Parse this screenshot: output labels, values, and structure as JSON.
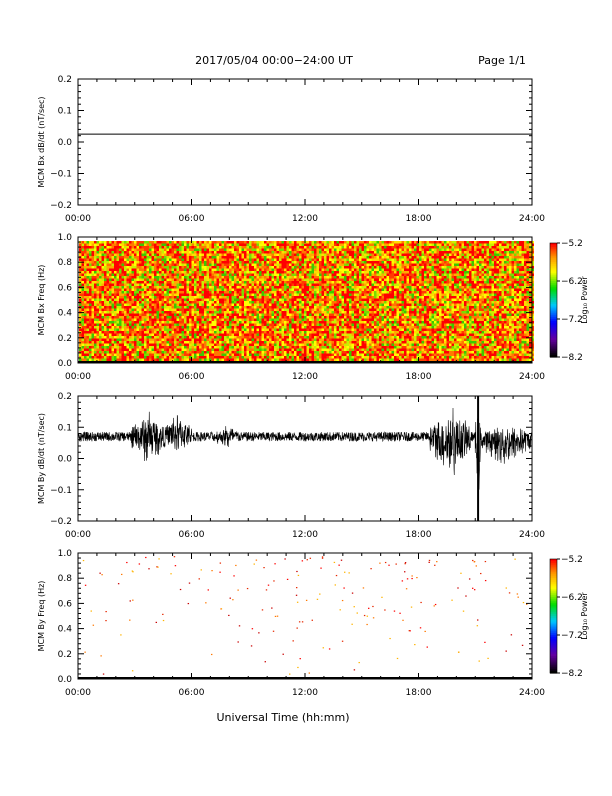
{
  "header": {
    "title": "2017/05/04  00:00−24:00 UT",
    "page": "Page 1/1"
  },
  "xlabel": "Universal Time (hh:mm)",
  "x_ticks": [
    "00:00",
    "06:00",
    "12:00",
    "18:00",
    "24:00"
  ],
  "chart_data": [
    {
      "type": "line",
      "ylabel": "MCM Bx dB/dt (nT/sec)",
      "xlim": [
        0,
        24
      ],
      "ylim": [
        -0.2,
        0.2
      ],
      "y_ticks": [
        "0.2",
        "0.1",
        "0.0",
        "−0.1",
        "−0.2"
      ],
      "series": [
        {
          "x": [
            0,
            24
          ],
          "y": [
            0.025,
            0.025
          ]
        }
      ]
    },
    {
      "type": "heatmap",
      "ylabel": "MCM Bx Freq (Hz)",
      "xlim": [
        0,
        24
      ],
      "ylim": [
        0,
        1.0
      ],
      "y_ticks": [
        "1.0",
        "0.8",
        "0.6",
        "0.4",
        "0.2",
        "0.0"
      ],
      "colorbar": {
        "label": "Log₁₀ Power",
        "ticks": [
          "−5.2",
          "−6.2",
          "−7.2",
          "−8.2"
        ],
        "range": [
          -8.2,
          -5.2
        ]
      },
      "values": "dense noise, mostly -5.2 to -6.2 (red/orange/yellow with green speckle)"
    },
    {
      "type": "line",
      "ylabel": "MCM By dB/dt (nT/sec)",
      "xlim": [
        0,
        24
      ],
      "ylim": [
        -0.2,
        0.2
      ],
      "y_ticks": [
        "0.2",
        "0.1",
        "0.0",
        "−0.1",
        "−0.2"
      ],
      "series": [
        {
          "baseline": 0.07,
          "noise_amplitude": 0.015,
          "bursts": [
            {
              "x": [
                2.8,
                4.6
              ],
              "range": [
                -0.04,
                0.17
              ]
            },
            {
              "x": [
                4.6,
                6.0
              ],
              "range": [
                0.0,
                0.17
              ]
            },
            {
              "x": [
                7.2,
                8.6
              ],
              "range": [
                0.02,
                0.12
              ]
            },
            {
              "x": [
                18.6,
                20.8
              ],
              "range": [
                -0.09,
                0.18
              ]
            },
            {
              "x": [
                21.0,
                21.3
              ],
              "range": [
                -0.2,
                0.2
              ]
            },
            {
              "x": [
                21.3,
                24.0
              ],
              "range": [
                -0.05,
                0.12
              ]
            }
          ]
        }
      ]
    },
    {
      "type": "heatmap",
      "ylabel": "MCM By Freq (Hz)",
      "xlim": [
        0,
        24
      ],
      "ylim": [
        0,
        1.0
      ],
      "y_ticks": [
        "1.0",
        "0.8",
        "0.6",
        "0.4",
        "0.2",
        "0.0"
      ],
      "colorbar": {
        "label": "Log₁₀ Power",
        "ticks": [
          "−5.2",
          "−6.2",
          "−7.2",
          "−8.2"
        ],
        "range": [
          -8.2,
          -5.2
        ]
      },
      "values": "sparse red/orange points, mostly between 0.4 and 1.0 Hz"
    }
  ]
}
